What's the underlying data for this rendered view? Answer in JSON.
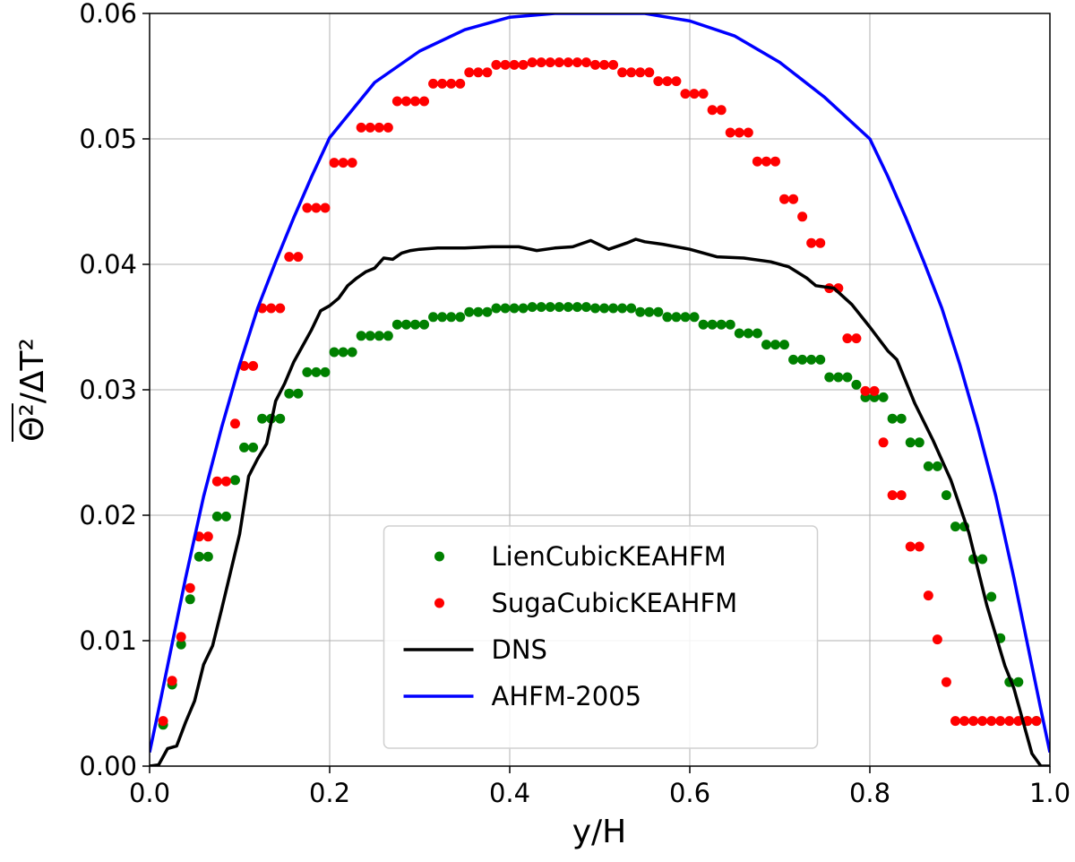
{
  "chart_data": {
    "type": "line",
    "xlabel": "y/H",
    "ylabel": "Θ²/ΔT²",
    "xlim": [
      0,
      1
    ],
    "ylim": [
      0,
      0.06
    ],
    "xticks": [
      {
        "value": 0,
        "label": "0.0"
      },
      0.2,
      0.4,
      0.6,
      0.8,
      {
        "value": 1,
        "label": "1.0"
      }
    ],
    "yticks": [
      {
        "value": 0,
        "label": "0.00"
      },
      0.01,
      0.02,
      0.03,
      0.04,
      0.05,
      0.06
    ],
    "grid": true,
    "legend": "lower center",
    "series": [
      {
        "name": "LienCubicKEAHFM",
        "type": "scatter",
        "color": "#008000",
        "x": [
          0.015,
          0.025,
          0.035,
          0.045,
          0.055,
          0.065,
          0.075,
          0.085,
          0.095,
          0.105,
          0.115,
          0.125,
          0.135,
          0.145,
          0.155,
          0.165,
          0.175,
          0.185,
          0.195,
          0.205,
          0.215,
          0.225,
          0.235,
          0.245,
          0.255,
          0.265,
          0.275,
          0.285,
          0.295,
          0.305,
          0.315,
          0.325,
          0.335,
          0.345,
          0.355,
          0.365,
          0.375,
          0.385,
          0.395,
          0.405,
          0.415,
          0.425,
          0.435,
          0.445,
          0.455,
          0.465,
          0.475,
          0.485,
          0.495,
          0.505,
          0.515,
          0.525,
          0.535,
          0.545,
          0.555,
          0.565,
          0.575,
          0.585,
          0.595,
          0.605,
          0.615,
          0.625,
          0.635,
          0.645,
          0.655,
          0.665,
          0.675,
          0.685,
          0.695,
          0.705,
          0.715,
          0.725,
          0.735,
          0.745,
          0.755,
          0.765,
          0.775,
          0.785,
          0.795,
          0.805,
          0.815,
          0.825,
          0.835,
          0.845,
          0.855,
          0.865,
          0.875,
          0.885,
          0.895,
          0.905,
          0.915,
          0.925,
          0.935,
          0.945,
          0.955,
          0.965,
          0.975,
          0.985
        ],
        "values": [
          0.0033,
          0.0065,
          0.0097,
          0.0133,
          0.0167,
          0.0167,
          0.0199,
          0.0199,
          0.0228,
          0.0254,
          0.0254,
          0.0277,
          0.0277,
          0.0277,
          0.0297,
          0.0297,
          0.0314,
          0.0314,
          0.0314,
          0.033,
          0.033,
          0.033,
          0.0343,
          0.0343,
          0.0343,
          0.0343,
          0.0352,
          0.0352,
          0.0352,
          0.0352,
          0.0358,
          0.0358,
          0.0358,
          0.0358,
          0.0362,
          0.0362,
          0.0362,
          0.0365,
          0.0365,
          0.0365,
          0.0365,
          0.0366,
          0.0366,
          0.0366,
          0.0366,
          0.0366,
          0.0366,
          0.0366,
          0.0365,
          0.0365,
          0.0365,
          0.0365,
          0.0365,
          0.0362,
          0.0362,
          0.0362,
          0.0358,
          0.0358,
          0.0358,
          0.0358,
          0.0352,
          0.0352,
          0.0352,
          0.0352,
          0.0345,
          0.0345,
          0.0345,
          0.0336,
          0.0336,
          0.0336,
          0.0324,
          0.0324,
          0.0324,
          0.0324,
          0.031,
          0.031,
          0.031,
          0.0304,
          0.0294,
          0.0294,
          0.0294,
          0.0277,
          0.0277,
          0.0258,
          0.0258,
          0.0239,
          0.0239,
          0.0216,
          0.0191,
          0.0191,
          0.0165,
          0.0165,
          0.0135,
          0.0102,
          0.0067,
          0.0067,
          0.0036,
          0.0036
        ]
      },
      {
        "name": "SugaCubicKEAHFM",
        "type": "scatter",
        "color": "#ff0000",
        "x": [
          0.015,
          0.025,
          0.035,
          0.045,
          0.055,
          0.065,
          0.075,
          0.085,
          0.095,
          0.105,
          0.115,
          0.125,
          0.135,
          0.145,
          0.155,
          0.165,
          0.175,
          0.185,
          0.195,
          0.205,
          0.215,
          0.225,
          0.235,
          0.245,
          0.255,
          0.265,
          0.275,
          0.285,
          0.295,
          0.305,
          0.315,
          0.325,
          0.335,
          0.345,
          0.355,
          0.365,
          0.375,
          0.385,
          0.395,
          0.405,
          0.415,
          0.425,
          0.435,
          0.445,
          0.455,
          0.465,
          0.475,
          0.485,
          0.495,
          0.505,
          0.515,
          0.525,
          0.535,
          0.545,
          0.555,
          0.565,
          0.575,
          0.585,
          0.595,
          0.605,
          0.615,
          0.625,
          0.635,
          0.645,
          0.655,
          0.665,
          0.675,
          0.685,
          0.695,
          0.705,
          0.715,
          0.725,
          0.735,
          0.745,
          0.755,
          0.765,
          0.775,
          0.785,
          0.795,
          0.805,
          0.815,
          0.825,
          0.835,
          0.845,
          0.855,
          0.865,
          0.875,
          0.885,
          0.895,
          0.905,
          0.915,
          0.925,
          0.935,
          0.945,
          0.955,
          0.965,
          0.975,
          0.985
        ],
        "values": [
          0.0036,
          0.0068,
          0.0103,
          0.0142,
          0.0183,
          0.0183,
          0.0227,
          0.0227,
          0.0273,
          0.0319,
          0.0319,
          0.0365,
          0.0365,
          0.0365,
          0.0406,
          0.0406,
          0.0445,
          0.0445,
          0.0445,
          0.0481,
          0.0481,
          0.0481,
          0.0509,
          0.0509,
          0.0509,
          0.0509,
          0.053,
          0.053,
          0.053,
          0.053,
          0.0544,
          0.0544,
          0.0544,
          0.0544,
          0.0553,
          0.0553,
          0.0553,
          0.0559,
          0.0559,
          0.0559,
          0.0559,
          0.0561,
          0.0561,
          0.0561,
          0.0561,
          0.0561,
          0.0561,
          0.0561,
          0.0559,
          0.0559,
          0.0559,
          0.0553,
          0.0553,
          0.0553,
          0.0553,
          0.0546,
          0.0546,
          0.0546,
          0.0536,
          0.0536,
          0.0536,
          0.0523,
          0.0523,
          0.0505,
          0.0505,
          0.0505,
          0.0482,
          0.0482,
          0.0482,
          0.0452,
          0.0452,
          0.0438,
          0.0417,
          0.0417,
          0.0381,
          0.0381,
          0.0341,
          0.0341,
          0.0299,
          0.0299,
          0.0258,
          0.0216,
          0.0216,
          0.0175,
          0.0175,
          0.0136,
          0.0101,
          0.0067,
          0.0036,
          0.0036,
          0.0036,
          0.0036,
          0.0036,
          0.0036,
          0.0036,
          0.0036,
          0.0036,
          0.0036
        ]
      },
      {
        "name": "DNS",
        "type": "line",
        "color": "#000000",
        "x": [
          0,
          0.01,
          0.02,
          0.03,
          0.04,
          0.05,
          0.06,
          0.07,
          0.08,
          0.09,
          0.1,
          0.11,
          0.12,
          0.13,
          0.14,
          0.15,
          0.16,
          0.17,
          0.18,
          0.19,
          0.2,
          0.21,
          0.22,
          0.23,
          0.24,
          0.25,
          0.26,
          0.27,
          0.28,
          0.29,
          0.3,
          0.32,
          0.35,
          0.38,
          0.41,
          0.43,
          0.45,
          0.47,
          0.49,
          0.51,
          0.53,
          0.54,
          0.55,
          0.57,
          0.6,
          0.63,
          0.66,
          0.69,
          0.71,
          0.73,
          0.74,
          0.76,
          0.78,
          0.8,
          0.82,
          0.83,
          0.85,
          0.87,
          0.89,
          0.91,
          0.93,
          0.95,
          0.96,
          0.97,
          0.98,
          0.99,
          1
        ],
        "values": [
          0,
          0.0001,
          0.0014,
          0.0016,
          0.0035,
          0.0052,
          0.0081,
          0.0096,
          0.0125,
          0.0155,
          0.0185,
          0.0231,
          0.0245,
          0.0257,
          0.0291,
          0.0305,
          0.0322,
          0.0335,
          0.0348,
          0.0363,
          0.0367,
          0.0373,
          0.0383,
          0.0389,
          0.0394,
          0.0397,
          0.0405,
          0.0404,
          0.0409,
          0.0411,
          0.0412,
          0.0413,
          0.0413,
          0.0414,
          0.0414,
          0.0411,
          0.0413,
          0.0414,
          0.0419,
          0.0412,
          0.0417,
          0.042,
          0.0418,
          0.0416,
          0.0412,
          0.0406,
          0.0405,
          0.0402,
          0.0398,
          0.0389,
          0.0383,
          0.0381,
          0.0368,
          0.035,
          0.0331,
          0.0324,
          0.0289,
          0.026,
          0.0228,
          0.0186,
          0.0128,
          0.008,
          0.0062,
          0.0036,
          0.001,
          0,
          0
        ]
      },
      {
        "name": "AHFM-2005",
        "type": "line",
        "color": "#0000ff",
        "x": [
          0,
          0.01,
          0.02,
          0.04,
          0.06,
          0.08,
          0.1,
          0.12,
          0.14,
          0.16,
          0.18,
          0.2,
          0.25,
          0.3,
          0.35,
          0.4,
          0.45,
          0.5,
          0.55,
          0.6,
          0.65,
          0.7,
          0.75,
          0.8,
          0.82,
          0.84,
          0.86,
          0.88,
          0.9,
          0.92,
          0.94,
          0.96,
          0.98,
          0.99,
          1
        ],
        "values": [
          0.0011,
          0.0045,
          0.008,
          0.015,
          0.0215,
          0.027,
          0.032,
          0.0365,
          0.0402,
          0.0437,
          0.047,
          0.0501,
          0.0545,
          0.057,
          0.0587,
          0.0597,
          0.06,
          0.06,
          0.06,
          0.0594,
          0.0582,
          0.0561,
          0.0533,
          0.05,
          0.047,
          0.0437,
          0.0402,
          0.0365,
          0.032,
          0.027,
          0.0215,
          0.015,
          0.008,
          0.0045,
          0.0011
        ]
      }
    ]
  }
}
